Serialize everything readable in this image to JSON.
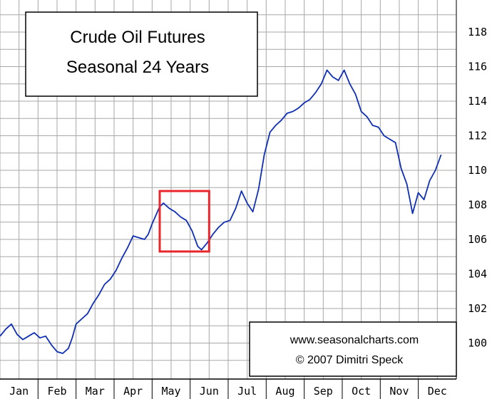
{
  "chart_data": {
    "type": "line",
    "title": "Crude Oil Futures",
    "subtitle": "Seasonal 24 Years",
    "credit_url": "www.seasonalcharts.com",
    "credit_author": "© 2007   Dimitri Speck",
    "xlabel": "",
    "ylabel": "",
    "categories": [
      "Jan",
      "Feb",
      "Mar",
      "Apr",
      "May",
      "Jun",
      "Jul",
      "Aug",
      "Sep",
      "Oct",
      "Nov",
      "Dec"
    ],
    "ylim": [
      99,
      119
    ],
    "yticks": [
      100,
      102,
      104,
      106,
      108,
      110,
      112,
      114,
      116,
      118
    ],
    "grid": true,
    "line_color": "#0f2fb5",
    "highlight_color": "#e8262b",
    "highlight_range": {
      "x": [
        4.2,
        5.5
      ],
      "y": [
        105.3,
        108.8
      ]
    },
    "series": [
      {
        "x": [
          0.0,
          0.15,
          0.3,
          0.45,
          0.6,
          0.75,
          0.9,
          1.05,
          1.2,
          1.35,
          1.5,
          1.65,
          1.8,
          1.9,
          2.0,
          2.15,
          2.3,
          2.45,
          2.6,
          2.75,
          2.9,
          3.05,
          3.2,
          3.35,
          3.5,
          3.65,
          3.8,
          3.9,
          4.0,
          4.1,
          4.2,
          4.3,
          4.45,
          4.6,
          4.75,
          4.9,
          5.05,
          5.2,
          5.3,
          5.45,
          5.6,
          5.75,
          5.9,
          6.05,
          6.2,
          6.35,
          6.5,
          6.65,
          6.8,
          6.95,
          7.1,
          7.25,
          7.4,
          7.55,
          7.7,
          7.85,
          8.0,
          8.15,
          8.3,
          8.45,
          8.6,
          8.75,
          8.9,
          9.05,
          9.2,
          9.35,
          9.5,
          9.65,
          9.8,
          9.95,
          10.1,
          10.25,
          10.4,
          10.55,
          10.7,
          10.85,
          11.0,
          11.15,
          11.3,
          11.45,
          11.6
        ],
        "y": [
          100.4,
          100.8,
          101.1,
          100.5,
          100.2,
          100.4,
          100.6,
          100.3,
          100.4,
          99.9,
          99.5,
          99.4,
          99.7,
          100.3,
          101.1,
          101.4,
          101.7,
          102.3,
          102.8,
          103.4,
          103.7,
          104.2,
          104.9,
          105.5,
          106.2,
          106.1,
          106.0,
          106.3,
          106.9,
          107.4,
          107.9,
          108.1,
          107.8,
          107.6,
          107.3,
          107.1,
          106.5,
          105.6,
          105.4,
          105.8,
          106.3,
          106.7,
          107.0,
          107.1,
          107.8,
          108.8,
          108.1,
          107.6,
          108.9,
          110.9,
          112.2,
          112.6,
          112.9,
          113.3,
          113.4,
          113.6,
          113.9,
          114.1,
          114.5,
          115.0,
          115.8,
          115.4,
          115.2,
          115.8,
          115.0,
          114.4,
          113.4,
          113.1,
          112.6,
          112.5,
          112.0,
          111.8,
          111.6,
          110.1,
          109.2,
          107.5,
          108.7,
          108.3,
          109.4,
          110.0,
          110.9
        ]
      }
    ]
  }
}
